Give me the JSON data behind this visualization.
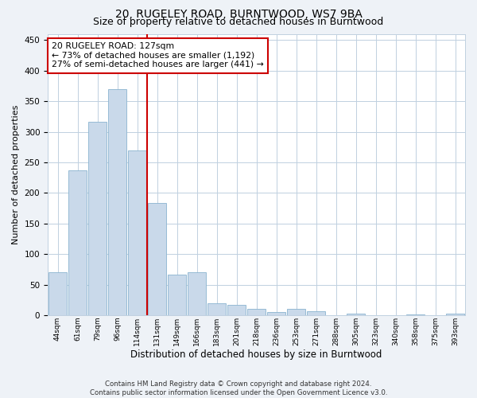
{
  "title": "20, RUGELEY ROAD, BURNTWOOD, WS7 9BA",
  "subtitle": "Size of property relative to detached houses in Burntwood",
  "xlabel": "Distribution of detached houses by size in Burntwood",
  "ylabel": "Number of detached properties",
  "categories": [
    "44sqm",
    "61sqm",
    "79sqm",
    "96sqm",
    "114sqm",
    "131sqm",
    "149sqm",
    "166sqm",
    "183sqm",
    "201sqm",
    "218sqm",
    "236sqm",
    "253sqm",
    "271sqm",
    "288sqm",
    "305sqm",
    "323sqm",
    "340sqm",
    "358sqm",
    "375sqm",
    "393sqm"
  ],
  "values": [
    70,
    237,
    316,
    369,
    270,
    184,
    67,
    70,
    20,
    17,
    10,
    6,
    10,
    7,
    0,
    3,
    0,
    0,
    2,
    0,
    3
  ],
  "bar_color": "#c9d9ea",
  "bar_edge_color": "#8ab4d0",
  "annotation_line0": "20 RUGELEY ROAD: 127sqm",
  "annotation_line1": "← 73% of detached houses are smaller (1,192)",
  "annotation_line2": "27% of semi-detached houses are larger (441) →",
  "annotation_box_color": "white",
  "annotation_box_edge_color": "#cc0000",
  "marker_line_color": "#cc0000",
  "ylim": [
    0,
    460
  ],
  "yticks": [
    0,
    50,
    100,
    150,
    200,
    250,
    300,
    350,
    400,
    450
  ],
  "footer_line1": "Contains HM Land Registry data © Crown copyright and database right 2024.",
  "footer_line2": "Contains public sector information licensed under the Open Government Licence v3.0.",
  "bg_color": "#eef2f7",
  "plot_bg_color": "white",
  "grid_color": "#c0d0e0",
  "title_fontsize": 10,
  "subtitle_fontsize": 9
}
